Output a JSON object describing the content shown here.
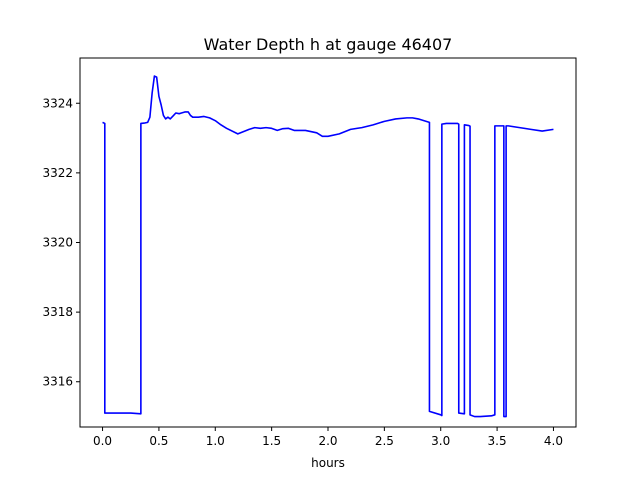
{
  "chart_data": {
    "type": "line",
    "title": "Water Depth h at gauge 46407",
    "xlabel": "hours",
    "ylabel": "",
    "xlim": [
      -0.2,
      4.2
    ],
    "ylim": [
      3314.7,
      3325.3
    ],
    "x_ticks": [
      0.0,
      0.5,
      1.0,
      1.5,
      2.0,
      2.5,
      3.0,
      3.5,
      4.0
    ],
    "x_tick_labels": [
      "0.0",
      "0.5",
      "1.0",
      "1.5",
      "2.0",
      "2.5",
      "3.0",
      "3.5",
      "4.0"
    ],
    "y_ticks": [
      3316,
      3318,
      3320,
      3322,
      3324
    ],
    "y_tick_labels": [
      "3316",
      "3318",
      "3320",
      "3322",
      "3324"
    ],
    "grid": false,
    "series": [
      {
        "color": "#0000ff",
        "x": [
          0.0,
          0.02,
          0.02,
          0.1,
          0.2,
          0.25,
          0.34,
          0.34,
          0.37,
          0.4,
          0.42,
          0.44,
          0.46,
          0.48,
          0.5,
          0.52,
          0.54,
          0.56,
          0.58,
          0.6,
          0.63,
          0.65,
          0.68,
          0.7,
          0.73,
          0.76,
          0.78,
          0.8,
          0.85,
          0.9,
          0.95,
          1.0,
          1.05,
          1.1,
          1.2,
          1.3,
          1.35,
          1.4,
          1.45,
          1.5,
          1.55,
          1.6,
          1.65,
          1.7,
          1.8,
          1.9,
          1.95,
          2.0,
          2.1,
          2.2,
          2.3,
          2.4,
          2.5,
          2.6,
          2.7,
          2.75,
          2.8,
          2.9,
          2.9,
          3.0,
          3.01,
          3.01,
          3.05,
          3.1,
          3.15,
          3.16,
          3.16,
          3.21,
          3.21,
          3.25,
          3.26,
          3.26,
          3.3,
          3.35,
          3.4,
          3.45,
          3.48,
          3.48,
          3.55,
          3.56,
          3.56,
          3.58,
          3.58,
          3.6,
          3.7,
          3.8,
          3.9,
          4.0
        ],
        "y": [
          3323.45,
          3323.42,
          3315.1,
          3315.1,
          3315.1,
          3315.1,
          3315.08,
          3323.42,
          3323.43,
          3323.45,
          3323.6,
          3324.3,
          3324.78,
          3324.75,
          3324.2,
          3323.95,
          3323.65,
          3323.55,
          3323.6,
          3323.55,
          3323.65,
          3323.72,
          3323.7,
          3323.72,
          3323.75,
          3323.75,
          3323.65,
          3323.6,
          3323.6,
          3323.62,
          3323.58,
          3323.5,
          3323.38,
          3323.28,
          3323.12,
          3323.25,
          3323.3,
          3323.28,
          3323.3,
          3323.28,
          3323.22,
          3323.27,
          3323.28,
          3323.22,
          3323.22,
          3323.15,
          3323.05,
          3323.05,
          3323.12,
          3323.25,
          3323.3,
          3323.38,
          3323.48,
          3323.55,
          3323.58,
          3323.58,
          3323.55,
          3323.45,
          3315.15,
          3315.05,
          3315.03,
          3323.4,
          3323.42,
          3323.42,
          3323.42,
          3323.4,
          3315.1,
          3315.08,
          3323.38,
          3323.36,
          3323.34,
          3315.05,
          3315.0,
          3315.0,
          3315.01,
          3315.02,
          3315.05,
          3323.35,
          3323.35,
          3323.35,
          3315.0,
          3315.0,
          3323.35,
          3323.35,
          3323.3,
          3323.25,
          3323.2,
          3323.25
        ]
      }
    ]
  }
}
